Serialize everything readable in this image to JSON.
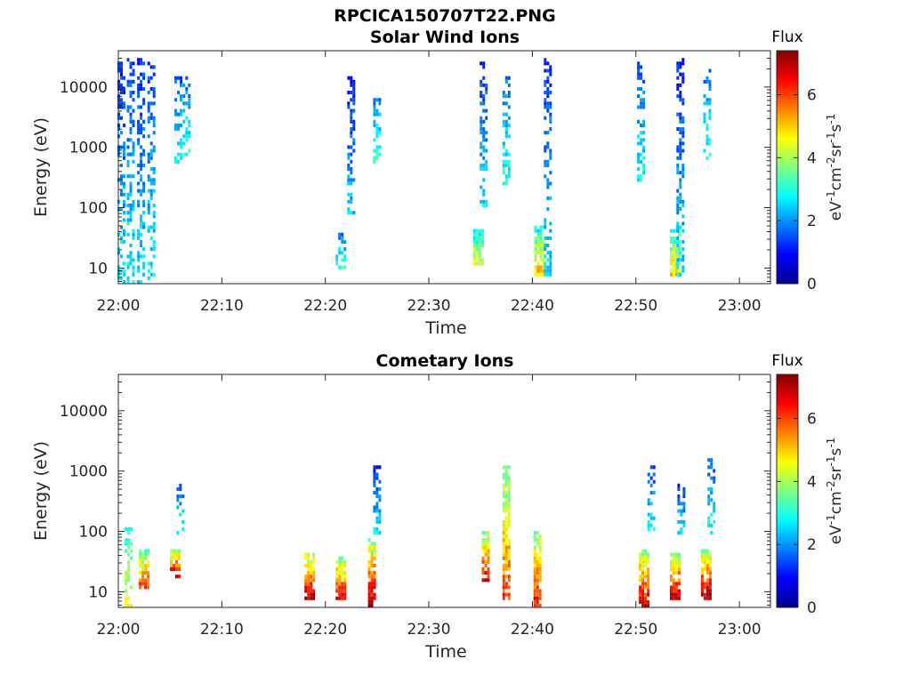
{
  "figure": {
    "title": "RPCICA150707T22.PNG"
  },
  "panels": [
    {
      "title": "Solar Wind Ions",
      "xlabel": "Time",
      "ylabel": "Energy (eV)",
      "colorbar_title": "Flux",
      "colorbar_label": "eV^-1cm^-2sr^-1s^-1"
    },
    {
      "title": "Cometary Ions",
      "xlabel": "Time",
      "ylabel": "Energy (eV)",
      "colorbar_title": "Flux",
      "colorbar_label": "eV^-1cm^-2sr^-1s^-1"
    }
  ],
  "chart_data": [
    {
      "type": "heatmap",
      "title": "Solar Wind Ions",
      "xlabel": "Time",
      "ylabel": "Energy (eV)",
      "yscale": "log",
      "xlim": [
        "22:00",
        "23:03"
      ],
      "ylim": [
        5.5,
        40000
      ],
      "xticks": [
        "22:00",
        "22:10",
        "22:20",
        "22:30",
        "22:40",
        "22:50",
        "23:00"
      ],
      "yticks": [
        10,
        100,
        1000,
        10000
      ],
      "ytick_labels": [
        "10",
        "100",
        "1000",
        "10000"
      ],
      "colorbar": {
        "title": "Flux",
        "label": "eV^-1cm^-2sr^-1s^-1",
        "range": [
          0,
          7.4
        ],
        "ticks": [
          0,
          2,
          4,
          6
        ],
        "colormap": "jet"
      },
      "columns": [
        {
          "t": "22:00.3",
          "emin": 6,
          "emax": 30000,
          "level": 1.2
        },
        {
          "t": "22:01.2",
          "emin": 6,
          "emax": 30000,
          "level": 1.3
        },
        {
          "t": "22:02.2",
          "emin": 6,
          "emax": 30000,
          "level": 1.2
        },
        {
          "t": "22:03.2",
          "emin": 6,
          "emax": 25000,
          "level": 1.3
        },
        {
          "t": "22:05.8",
          "emin": 600,
          "emax": 15000,
          "level": 1.5
        },
        {
          "t": "22:06.6",
          "emin": 800,
          "emax": 15000,
          "level": 1.6
        },
        {
          "t": "22:21.5",
          "emin": 11,
          "emax": 35,
          "level": 1.6
        },
        {
          "t": "22:22.5",
          "emin": 80,
          "emax": 15000,
          "level": 1.0
        },
        {
          "t": "22:25.0",
          "emin": 600,
          "emax": 6000,
          "level": 1.8
        },
        {
          "t": "22:34.8",
          "emin": 12,
          "emax": 40,
          "level": 4.5
        },
        {
          "t": "22:35.3",
          "emin": 100,
          "emax": 25000,
          "level": 1.2
        },
        {
          "t": "22:37.5",
          "emin": 250,
          "emax": 15000,
          "level": 1.6
        },
        {
          "t": "22:40.7",
          "emin": 8,
          "emax": 50,
          "level": 5.0
        },
        {
          "t": "22:41.5",
          "emin": 8,
          "emax": 30000,
          "level": 1.2
        },
        {
          "t": "22:50.5",
          "emin": 300,
          "emax": 25000,
          "level": 1.4
        },
        {
          "t": "22:53.8",
          "emin": 8,
          "emax": 40,
          "level": 5.0
        },
        {
          "t": "22:54.3",
          "emin": 8,
          "emax": 35000,
          "level": 1.1
        },
        {
          "t": "22:56.9",
          "emin": 700,
          "emax": 20000,
          "level": 1.6
        }
      ]
    },
    {
      "type": "heatmap",
      "title": "Cometary Ions",
      "xlabel": "Time",
      "ylabel": "Energy (eV)",
      "yscale": "log",
      "xlim": [
        "22:00",
        "23:03"
      ],
      "ylim": [
        5.5,
        40000
      ],
      "xticks": [
        "22:00",
        "22:10",
        "22:20",
        "22:30",
        "22:40",
        "22:50",
        "23:00"
      ],
      "yticks": [
        10,
        100,
        1000,
        10000
      ],
      "ytick_labels": [
        "10",
        "100",
        "1000",
        "10000"
      ],
      "colorbar": {
        "title": "Flux",
        "label": "eV^-1cm^-2sr^-1s^-1",
        "range": [
          0,
          7.4
        ],
        "ticks": [
          0,
          2,
          4,
          6
        ],
        "colormap": "jet"
      },
      "columns": [
        {
          "t": "22:01.0",
          "emin": 6,
          "emax": 120,
          "level": 3.0
        },
        {
          "t": "22:02.5",
          "emin": 12,
          "emax": 45,
          "level": 6.0
        },
        {
          "t": "22:05.5",
          "emin": 18,
          "emax": 45,
          "level": 6.8
        },
        {
          "t": "22:06.0",
          "emin": 100,
          "emax": 600,
          "level": 1.5
        },
        {
          "t": "22:18.5",
          "emin": 8,
          "emax": 40,
          "level": 7.0
        },
        {
          "t": "22:21.5",
          "emin": 8,
          "emax": 35,
          "level": 6.5
        },
        {
          "t": "22:24.5",
          "emin": 6,
          "emax": 70,
          "level": 7.0
        },
        {
          "t": "22:25.0",
          "emin": 100,
          "emax": 1100,
          "level": 1.2
        },
        {
          "t": "22:35.5",
          "emin": 15,
          "emax": 100,
          "level": 6.5
        },
        {
          "t": "22:37.5",
          "emin": 8,
          "emax": 1200,
          "level": 6.0
        },
        {
          "t": "22:40.5",
          "emin": 6,
          "emax": 100,
          "level": 6.5
        },
        {
          "t": "22:50.8",
          "emin": 6,
          "emax": 45,
          "level": 6.8
        },
        {
          "t": "22:51.5",
          "emin": 100,
          "emax": 1200,
          "level": 1.3
        },
        {
          "t": "22:53.8",
          "emin": 8,
          "emax": 40,
          "level": 7.0
        },
        {
          "t": "22:54.4",
          "emin": 100,
          "emax": 600,
          "level": 1.2
        },
        {
          "t": "22:56.8",
          "emin": 8,
          "emax": 45,
          "level": 7.0
        },
        {
          "t": "22:57.3",
          "emin": 100,
          "emax": 1500,
          "level": 1.4
        }
      ]
    }
  ]
}
